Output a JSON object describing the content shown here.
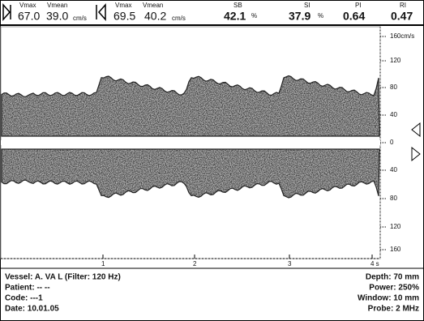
{
  "header": {
    "group1": {
      "vmax_label": "Vmax",
      "vmean_label": "Vmean",
      "vmax": "67.0",
      "vmean": "39.0",
      "unit": "cm/s"
    },
    "group2": {
      "vmax_label": "Vmax",
      "vmean_label": "Vmean",
      "vmax": "69.5",
      "vmean": "40.2",
      "unit": "cm/s"
    },
    "sb": {
      "label": "SB",
      "value": "42.1",
      "unit": "%"
    },
    "si": {
      "label": "SI",
      "value": "37.9",
      "unit": "%"
    },
    "pi": {
      "label": "PI",
      "value": "0.64"
    },
    "ri": {
      "label": "RI",
      "value": "0.47"
    }
  },
  "scale": [
    "160cm/s",
    "120",
    "80",
    "40",
    "0",
    "40",
    "80",
    "120",
    "160"
  ],
  "time_axis": [
    "1",
    "2",
    "3",
    "4 s"
  ],
  "footer": {
    "left": [
      "Vessel: A. VA L  (Filter: 120 Hz)",
      "Patient: -- --",
      "Code: ---1",
      "Date: 10.01.05"
    ],
    "right": [
      "Depth: 70 mm",
      "Power: 250%",
      "Window: 10 mm",
      "Probe: 2 MHz"
    ]
  }
}
